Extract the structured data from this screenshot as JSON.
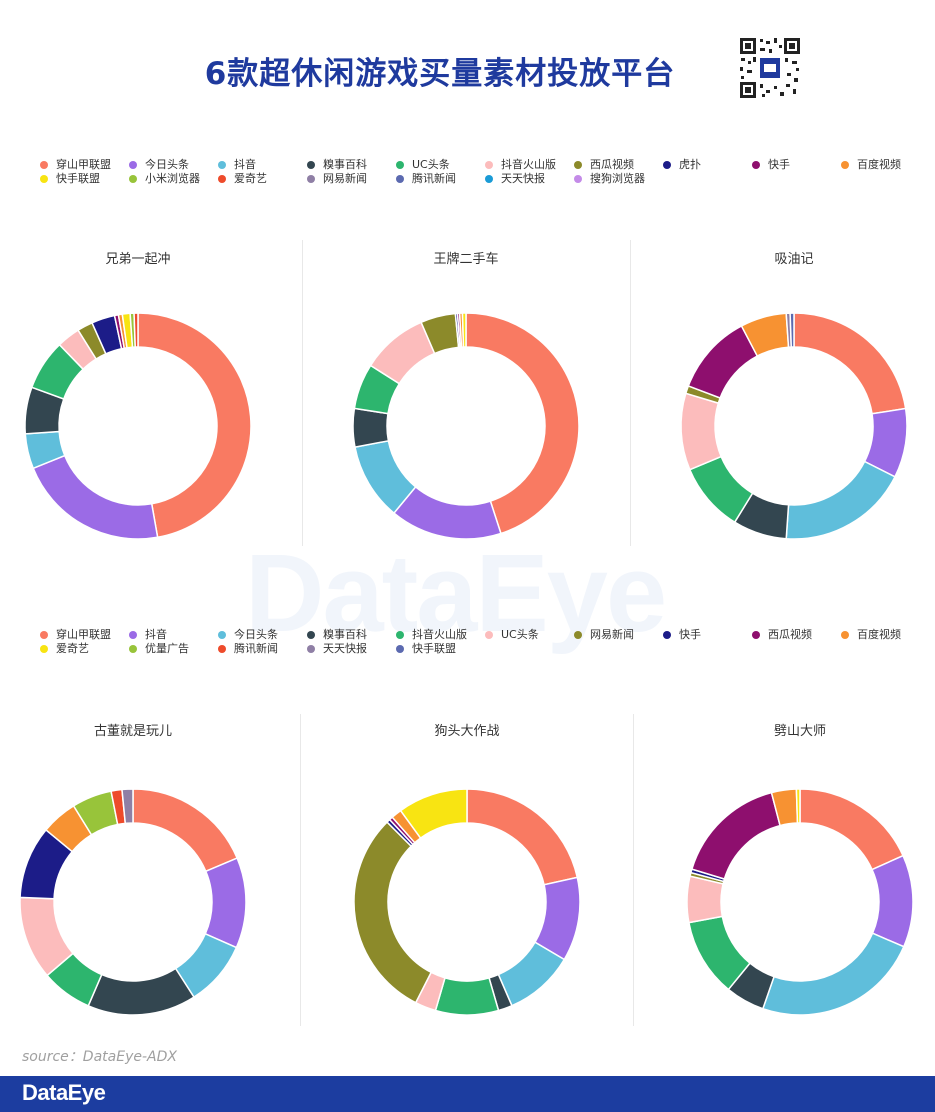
{
  "title": "6款超休闲游戏买量素材投放平台",
  "watermark": "DataEye",
  "source": "source：DataEye-ADX",
  "footer_logo": "DataEye",
  "colors": {
    "穿山甲联盟": "#f97a62",
    "今日头条": "#9b6be6",
    "抖音": "#5fbedb",
    "糗事百科": "#334650",
    "UC头条": "#2db56e",
    "抖音火山版": "#fcbcbc",
    "西瓜视频": "#8c8a2a",
    "虎扑": "#1c1c88",
    "快手": "#8e0f6e",
    "百度视频": "#f79232",
    "快手联盟": "#f8e412",
    "小米浏览器": "#98c43a",
    "爱奇艺": "#ee4b2b",
    "网易新闻": "#8f7fa5",
    "腾讯新闻": "#5c6ab0",
    "天天快报": "#1a9bd6",
    "搜狗浏览器": "#c48be8",
    "优量广告": "#98c43a"
  },
  "legend_top": [
    "穿山甲联盟",
    "今日头条",
    "抖音",
    "糗事百科",
    "UC头条",
    "抖音火山版",
    "西瓜视频",
    "虎扑",
    "快手",
    "百度视频",
    "快手联盟",
    "小米浏览器",
    "爱奇艺",
    "网易新闻",
    "腾讯新闻",
    "天天快报",
    "搜狗浏览器"
  ],
  "legend_bottom": [
    "穿山甲联盟",
    "抖音",
    "今日头条",
    "糗事百科",
    "抖音火山版",
    "UC头条",
    "网易新闻",
    "快手",
    "西瓜视频",
    "百度视频",
    "爱奇艺",
    "优量广告",
    "腾讯新闻",
    "天天快报",
    "快手联盟"
  ],
  "legend_bottom_colors": {
    "穿山甲联盟": "#f97a62",
    "抖音": "#9b6be6",
    "今日头条": "#5fbedb",
    "糗事百科": "#334650",
    "抖音火山版": "#2db56e",
    "UC头条": "#fcbcbc",
    "网易新闻": "#8c8a2a",
    "快手": "#1c1c88",
    "西瓜视频": "#8e0f6e",
    "百度视频": "#f79232",
    "爱奇艺": "#f8e412",
    "优量广告": "#98c43a",
    "腾讯新闻": "#ee4b2b",
    "天天快报": "#8f7fa5",
    "快手联盟": "#5c6ab0"
  },
  "chart_data": [
    {
      "type": "pie",
      "title": "兄弟一起冲",
      "palette": "top",
      "series": [
        {
          "name": "穿山甲联盟",
          "value": 42.5
        },
        {
          "name": "今日头条",
          "value": 19.5
        },
        {
          "name": "抖音",
          "value": 4.5
        },
        {
          "name": "糗事百科",
          "value": 6.0
        },
        {
          "name": "UC头条",
          "value": 6.5
        },
        {
          "name": "抖音火山版",
          "value": 3.0
        },
        {
          "name": "西瓜视频",
          "value": 2.0
        },
        {
          "name": "虎扑",
          "value": 3.0
        },
        {
          "name": "快手",
          "value": 0.5
        },
        {
          "name": "百度视频",
          "value": 0.5
        },
        {
          "name": "快手联盟",
          "value": 1.0
        },
        {
          "name": "小米浏览器",
          "value": 0.5
        },
        {
          "name": "爱奇艺",
          "value": 0.5
        }
      ]
    },
    {
      "type": "pie",
      "title": "王牌二手车",
      "palette": "top",
      "series": [
        {
          "name": "穿山甲联盟",
          "value": 45.0
        },
        {
          "name": "今日头条",
          "value": 16.0
        },
        {
          "name": "抖音",
          "value": 11.0
        },
        {
          "name": "糗事百科",
          "value": 5.5
        },
        {
          "name": "UC头条",
          "value": 6.5
        },
        {
          "name": "抖音火山版",
          "value": 9.5
        },
        {
          "name": "西瓜视频",
          "value": 5.0
        },
        {
          "name": "虎扑",
          "value": 0.3
        },
        {
          "name": "快手",
          "value": 0.3
        },
        {
          "name": "百度视频",
          "value": 0.4
        },
        {
          "name": "快手联盟",
          "value": 0.5
        }
      ]
    },
    {
      "type": "pie",
      "title": "吸油记",
      "palette": "top",
      "series": [
        {
          "name": "穿山甲联盟",
          "value": 20.5
        },
        {
          "name": "今日头条",
          "value": 9.0
        },
        {
          "name": "抖音",
          "value": 17.0
        },
        {
          "name": "糗事百科",
          "value": 7.0
        },
        {
          "name": "UC头条",
          "value": 9.0
        },
        {
          "name": "抖音火山版",
          "value": 10.0
        },
        {
          "name": "西瓜视频",
          "value": 1.0
        },
        {
          "name": "快手",
          "value": 10.5
        },
        {
          "name": "百度视频",
          "value": 6.0
        },
        {
          "name": "网易新闻",
          "value": 0.5
        },
        {
          "name": "腾讯新闻",
          "value": 0.5
        }
      ]
    },
    {
      "type": "pie",
      "title": "古董就是玩儿",
      "palette": "bottom",
      "series": [
        {
          "name": "穿山甲联盟",
          "value": 18.0
        },
        {
          "name": "抖音",
          "value": 12.5
        },
        {
          "name": "今日头条",
          "value": 9.0
        },
        {
          "name": "糗事百科",
          "value": 15.0
        },
        {
          "name": "抖音火山版",
          "value": 7.0
        },
        {
          "name": "UC头条",
          "value": 11.5
        },
        {
          "name": "快手",
          "value": 10.0
        },
        {
          "name": "百度视频",
          "value": 5.0
        },
        {
          "name": "优量广告",
          "value": 5.5
        },
        {
          "name": "腾讯新闻",
          "value": 1.5
        },
        {
          "name": "天天快报",
          "value": 1.5
        }
      ]
    },
    {
      "type": "pie",
      "title": "狗头大作战",
      "palette": "bottom",
      "series": [
        {
          "name": "穿山甲联盟",
          "value": 21.5
        },
        {
          "name": "抖音",
          "value": 12.0
        },
        {
          "name": "今日头条",
          "value": 10.0
        },
        {
          "name": "糗事百科",
          "value": 2.0
        },
        {
          "name": "抖音火山版",
          "value": 9.0
        },
        {
          "name": "UC头条",
          "value": 3.0
        },
        {
          "name": "网易新闻",
          "value": 30.0
        },
        {
          "name": "快手",
          "value": 0.5
        },
        {
          "name": "西瓜视频",
          "value": 0.5
        },
        {
          "name": "百度视频",
          "value": 1.5
        },
        {
          "name": "爱奇艺",
          "value": 10.0
        }
      ]
    },
    {
      "type": "pie",
      "title": "劈山大师",
      "palette": "bottom",
      "series": [
        {
          "name": "穿山甲联盟",
          "value": 18.0
        },
        {
          "name": "抖音",
          "value": 13.0
        },
        {
          "name": "今日头条",
          "value": 23.5
        },
        {
          "name": "糗事百科",
          "value": 5.5
        },
        {
          "name": "抖音火山版",
          "value": 11.0
        },
        {
          "name": "UC头条",
          "value": 6.5
        },
        {
          "name": "网易新闻",
          "value": 0.5
        },
        {
          "name": "快手",
          "value": 0.5
        },
        {
          "name": "西瓜视频",
          "value": 16.0
        },
        {
          "name": "百度视频",
          "value": 3.5
        },
        {
          "name": "爱奇艺",
          "value": 0.5
        }
      ]
    }
  ]
}
